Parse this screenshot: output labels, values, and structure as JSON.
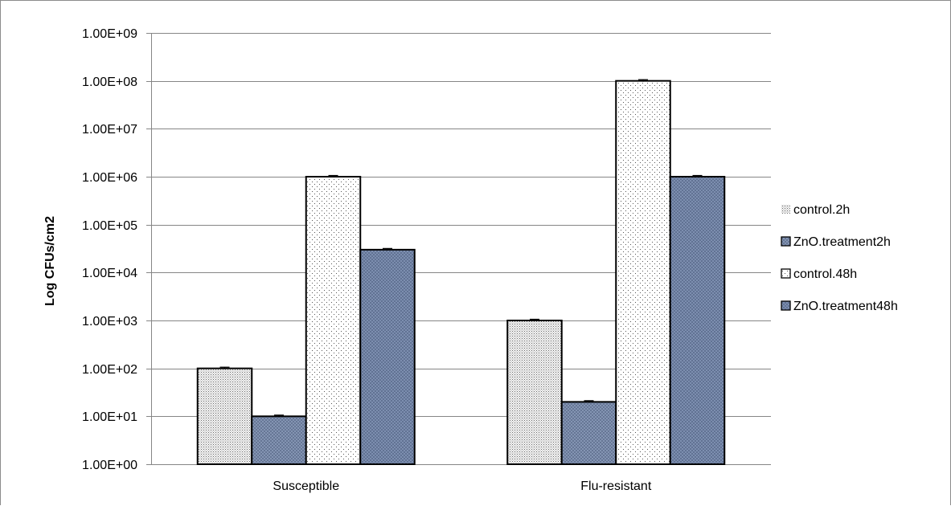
{
  "chart_data": {
    "type": "bar",
    "title": "",
    "xlabel": "",
    "ylabel": "Log CFUs/cm2",
    "yscale": "log",
    "ylim": [
      1,
      1000000000
    ],
    "yticks": [
      1,
      10,
      100,
      1000,
      10000,
      100000,
      1000000,
      10000000,
      100000000,
      1000000000
    ],
    "ytick_labels": [
      "1.00E+00",
      "1.00E+01",
      "1.00E+02",
      "1.00E+03",
      "1.00E+04",
      "1.00E+05",
      "1.00E+06",
      "1.00E+07",
      "1.00E+08",
      "1.00E+09"
    ],
    "categories": [
      "Susceptible",
      "Flu-resistant"
    ],
    "series": [
      {
        "name": "control.2h",
        "values": [
          100,
          1000
        ],
        "fill": "#e6e6e6",
        "pattern": "dots-fine"
      },
      {
        "name": "ZnO.treatment2h",
        "values": [
          10,
          20
        ],
        "fill": "#8c9dbb",
        "pattern": "crosshatch"
      },
      {
        "name": "control.48h",
        "values": [
          1000000,
          100000000
        ],
        "fill": "#ffffff",
        "pattern": "dots-sparse"
      },
      {
        "name": "ZnO.treatment48h",
        "values": [
          30000,
          1000000
        ],
        "fill": "#7f93b8",
        "pattern": "crosshatch"
      }
    ],
    "grid": true,
    "legend_position": "right",
    "error_bars": true
  }
}
